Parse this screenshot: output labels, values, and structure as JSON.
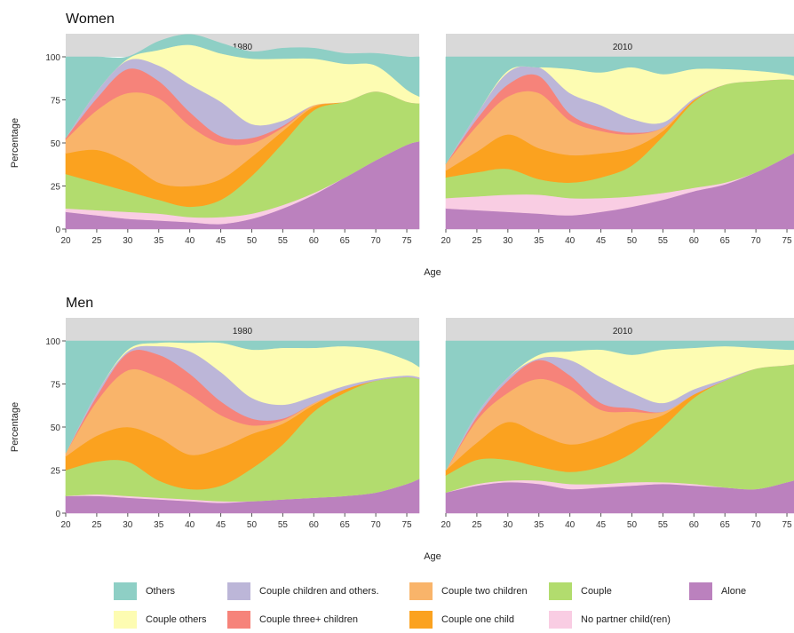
{
  "chart_data": [
    {
      "type": "area",
      "group_title": "Women",
      "panel_title": "1980",
      "xlabel": "Age",
      "ylabel": "Percentage",
      "xlim": [
        20,
        77
      ],
      "ylim": [
        0,
        100
      ],
      "x_ticks": [
        20,
        25,
        30,
        35,
        40,
        45,
        50,
        55,
        60,
        65,
        70,
        75
      ],
      "y_ticks": [
        0,
        25,
        50,
        75,
        100
      ],
      "x": [
        20,
        25,
        30,
        35,
        40,
        45,
        50,
        55,
        60,
        65,
        70,
        75,
        77
      ],
      "series": [
        {
          "name": "Alone",
          "values": [
            10,
            8,
            6,
            5,
            4,
            3,
            6,
            12,
            20,
            30,
            40,
            49,
            51
          ]
        },
        {
          "name": "No partner child(ren)",
          "values": [
            2,
            3,
            4,
            4,
            3,
            4,
            3,
            2,
            1,
            0,
            0,
            0,
            0
          ]
        },
        {
          "name": "Couple",
          "values": [
            20,
            16,
            12,
            8,
            6,
            10,
            22,
            36,
            48,
            44,
            40,
            25,
            22
          ]
        },
        {
          "name": "Couple one child",
          "values": [
            12,
            19,
            17,
            10,
            12,
            12,
            11,
            7,
            2,
            0,
            0,
            0,
            0
          ]
        },
        {
          "name": "Couple two children",
          "values": [
            8,
            23,
            40,
            49,
            35,
            21,
            8,
            2,
            1,
            0,
            0,
            0,
            0
          ]
        },
        {
          "name": "Couple three+ children",
          "values": [
            1,
            7,
            14,
            10,
            8,
            4,
            3,
            1,
            0,
            0,
            0,
            0,
            0
          ]
        },
        {
          "name": "Couple children and others.",
          "values": [
            0,
            4,
            5,
            9,
            16,
            20,
            8,
            3,
            0,
            0,
            0,
            0,
            0
          ]
        },
        {
          "name": "Couple others",
          "values": [
            0,
            0,
            1,
            9,
            23,
            28,
            38,
            36,
            27,
            22,
            15,
            7,
            4
          ]
        },
        {
          "name": "Others",
          "values": [
            47,
            20,
            1,
            5,
            6,
            6,
            4,
            6,
            6,
            6,
            7,
            19,
            23
          ]
        }
      ]
    },
    {
      "type": "area",
      "group_title": "Women",
      "panel_title": "2010",
      "xlabel": "Age",
      "ylabel": "Percentage",
      "xlim": [
        20,
        77
      ],
      "ylim": [
        0,
        100
      ],
      "x_ticks": [
        20,
        25,
        30,
        35,
        40,
        45,
        50,
        55,
        60,
        65,
        70,
        75
      ],
      "y_ticks": [
        0,
        25,
        50,
        75,
        100
      ],
      "x": [
        20,
        25,
        30,
        35,
        40,
        45,
        50,
        55,
        60,
        65,
        70,
        75,
        77
      ],
      "series": [
        {
          "name": "Alone",
          "values": [
            12,
            11,
            10,
            9,
            8,
            10,
            13,
            17,
            22,
            26,
            33,
            42,
            46
          ]
        },
        {
          "name": "No partner child(ren)",
          "values": [
            6,
            8,
            10,
            11,
            10,
            8,
            6,
            4,
            2,
            1,
            0,
            0,
            0
          ]
        },
        {
          "name": "Couple",
          "values": [
            12,
            14,
            15,
            9,
            9,
            12,
            18,
            33,
            50,
            57,
            53,
            45,
            40
          ]
        },
        {
          "name": "Couple one child",
          "values": [
            4,
            12,
            20,
            18,
            16,
            14,
            10,
            3,
            1,
            0,
            0,
            0,
            0
          ]
        },
        {
          "name": "Couple two children",
          "values": [
            4,
            15,
            22,
            32,
            20,
            13,
            8,
            2,
            0,
            0,
            0,
            0,
            0
          ]
        },
        {
          "name": "Couple three+ children",
          "values": [
            0,
            4,
            7,
            10,
            4,
            2,
            1,
            0,
            0,
            0,
            0,
            0,
            0
          ]
        },
        {
          "name": "Couple children and others.",
          "values": [
            0,
            3,
            7,
            5,
            12,
            13,
            8,
            3,
            1,
            0,
            0,
            0,
            0
          ]
        },
        {
          "name": "Couple others",
          "values": [
            0,
            0,
            1,
            0,
            14,
            19,
            30,
            28,
            17,
            9,
            6,
            3,
            2
          ]
        },
        {
          "name": "Others",
          "values": [
            62,
            33,
            8,
            6,
            7,
            9,
            6,
            10,
            7,
            7,
            8,
            10,
            12
          ]
        }
      ]
    },
    {
      "type": "area",
      "group_title": "Men",
      "panel_title": "1980",
      "xlabel": "Age",
      "ylabel": "Percentage",
      "xlim": [
        20,
        77
      ],
      "ylim": [
        0,
        100
      ],
      "x_ticks": [
        20,
        25,
        30,
        35,
        40,
        45,
        50,
        55,
        60,
        65,
        70,
        75
      ],
      "y_ticks": [
        0,
        25,
        50,
        75,
        100
      ],
      "x": [
        20,
        25,
        30,
        35,
        40,
        45,
        50,
        55,
        60,
        65,
        70,
        75,
        77
      ],
      "series": [
        {
          "name": "Alone",
          "values": [
            10,
            10,
            9,
            8,
            7,
            6,
            7,
            8,
            9,
            10,
            12,
            17,
            20
          ]
        },
        {
          "name": "No partner child(ren)",
          "values": [
            0,
            1,
            1,
            1,
            1,
            1,
            0,
            0,
            0,
            0,
            0,
            0,
            0
          ]
        },
        {
          "name": "Couple",
          "values": [
            15,
            19,
            20,
            10,
            6,
            9,
            19,
            32,
            50,
            60,
            65,
            62,
            58
          ]
        },
        {
          "name": "Couple one child",
          "values": [
            8,
            15,
            20,
            25,
            20,
            22,
            20,
            12,
            4,
            2,
            0,
            0,
            0
          ]
        },
        {
          "name": "Couple two children",
          "values": [
            2,
            20,
            33,
            35,
            35,
            19,
            5,
            2,
            1,
            0,
            0,
            0,
            0
          ]
        },
        {
          "name": "Couple three+ children",
          "values": [
            0,
            3,
            10,
            13,
            12,
            8,
            4,
            1,
            0,
            0,
            0,
            0,
            0
          ]
        },
        {
          "name": "Couple children and others.",
          "values": [
            0,
            2,
            1,
            5,
            13,
            17,
            12,
            8,
            4,
            2,
            1,
            1,
            1
          ]
        },
        {
          "name": "Couple others",
          "values": [
            0,
            0,
            1,
            2,
            5,
            17,
            28,
            33,
            28,
            23,
            17,
            9,
            6
          ]
        },
        {
          "name": "Others",
          "values": [
            65,
            30,
            5,
            1,
            1,
            1,
            5,
            4,
            4,
            3,
            5,
            11,
            15
          ]
        }
      ]
    },
    {
      "type": "area",
      "group_title": "Men",
      "panel_title": "2010",
      "xlabel": "Age",
      "ylabel": "Percentage",
      "xlim": [
        20,
        77
      ],
      "ylim": [
        0,
        100
      ],
      "x_ticks": [
        20,
        25,
        30,
        35,
        40,
        45,
        50,
        55,
        60,
        65,
        70,
        75
      ],
      "y_ticks": [
        0,
        25,
        50,
        75,
        100
      ],
      "x": [
        20,
        25,
        30,
        35,
        40,
        45,
        50,
        55,
        60,
        65,
        70,
        75,
        77
      ],
      "series": [
        {
          "name": "Alone",
          "values": [
            12,
            16,
            18,
            17,
            14,
            15,
            16,
            17,
            16,
            15,
            14,
            18,
            20
          ]
        },
        {
          "name": "No partner child(ren)",
          "values": [
            0,
            1,
            1,
            2,
            3,
            2,
            2,
            1,
            1,
            0,
            0,
            0,
            0
          ]
        },
        {
          "name": "Couple",
          "values": [
            10,
            14,
            12,
            8,
            7,
            10,
            17,
            32,
            50,
            62,
            70,
            68,
            67
          ]
        },
        {
          "name": "Couple one child",
          "values": [
            3,
            10,
            22,
            19,
            16,
            17,
            17,
            7,
            2,
            0,
            0,
            0,
            0
          ]
        },
        {
          "name": "Couple two children",
          "values": [
            0,
            13,
            17,
            32,
            32,
            16,
            7,
            2,
            0,
            0,
            0,
            0,
            0
          ]
        },
        {
          "name": "Couple three+ children",
          "values": [
            0,
            2,
            7,
            11,
            8,
            4,
            2,
            0,
            0,
            0,
            0,
            0,
            0
          ]
        },
        {
          "name": "Couple children and others.",
          "values": [
            0,
            2,
            2,
            1,
            9,
            15,
            9,
            5,
            3,
            1,
            0,
            0,
            0
          ]
        },
        {
          "name": "Couple others",
          "values": [
            0,
            0,
            0,
            2,
            5,
            16,
            22,
            31,
            24,
            19,
            12,
            9,
            8
          ]
        },
        {
          "name": "Others",
          "values": [
            75,
            42,
            21,
            8,
            6,
            5,
            8,
            5,
            4,
            3,
            4,
            5,
            5
          ]
        }
      ]
    }
  ],
  "legend": {
    "items": [
      {
        "name": "Others",
        "color": "#8ecfc5"
      },
      {
        "name": "Couple children and others.",
        "color": "#bcb6d8"
      },
      {
        "name": "Couple two children",
        "color": "#f9b46a"
      },
      {
        "name": "Couple",
        "color": "#b2dc6e"
      },
      {
        "name": "Alone",
        "color": "#bb81be"
      },
      {
        "name": "Couple others",
        "color": "#fdfcb2"
      },
      {
        "name": "Couple three+ children",
        "color": "#f6837a"
      },
      {
        "name": "Couple one child",
        "color": "#fba21f"
      },
      {
        "name": "No partner child(ren)",
        "color": "#f9cde3"
      }
    ]
  },
  "colors": {
    "Others": "#8ecfc5",
    "Couple others": "#fdfcb2",
    "Couple children and others.": "#bcb6d8",
    "Couple three+ children": "#f6837a",
    "Couple two children": "#f9b46a",
    "Couple one child": "#fba21f",
    "Couple": "#b2dc6e",
    "No partner child(ren)": "#f9cde3",
    "Alone": "#bb81be",
    "strip_background": "#d9d9d9",
    "axis_text": "#333333"
  }
}
